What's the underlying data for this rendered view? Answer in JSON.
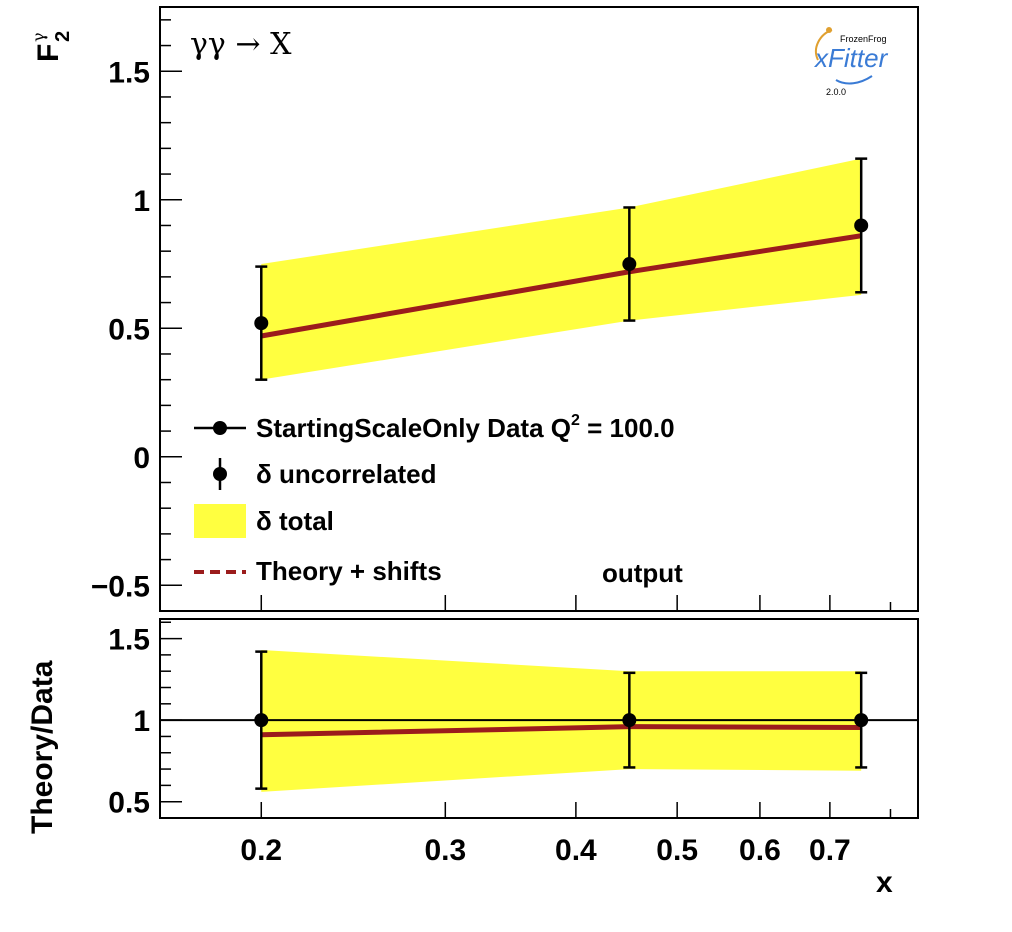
{
  "chart_data": [
    {
      "type": "scatter",
      "panel": "main",
      "process_label": "γγ → X",
      "ylabel": "F",
      "ylabel_sub": "2",
      "ylabel_sup": "γ",
      "xscale": "log",
      "xlim": [
        0.16,
        0.85
      ],
      "ylim": [
        -0.6,
        1.75
      ],
      "y_ticks": [
        1.5,
        1,
        0.5,
        0,
        -0.5
      ],
      "y_tick_labels": [
        "1.5",
        "1",
        "0.5",
        "0",
        "−0.5"
      ],
      "x": [
        0.2,
        0.45,
        0.75
      ],
      "data": [
        0.52,
        0.75,
        0.9
      ],
      "err_uncorrelated": [
        0.22,
        0.22,
        0.26
      ],
      "band_total_low": [
        0.3,
        0.53,
        0.63
      ],
      "band_total_high": [
        0.75,
        0.97,
        1.16
      ],
      "theory": [
        0.47,
        0.72,
        0.86
      ],
      "colors": {
        "band": "#ffff40",
        "theory": "#9b1c1c",
        "data": "#000000"
      },
      "legend": {
        "placement": "bottom-left",
        "entries": [
          {
            "symbol": "line-marker",
            "label": "StartingScaleOnly  Data Q",
            "sup": "2",
            "suffix": " = 100.0"
          },
          {
            "symbol": "errorbar",
            "label": "δ uncorrelated"
          },
          {
            "symbol": "box",
            "label": "δ total"
          },
          {
            "symbol": "dashed",
            "label": "Theory + shifts"
          }
        ]
      },
      "annotation": "output",
      "logo": {
        "top": "FrozenFrog",
        "name": "xFitter",
        "version": "2.0.0"
      }
    },
    {
      "type": "scatter",
      "panel": "ratio",
      "ylabel": "Theory/Data",
      "xlabel": "x",
      "xscale": "log",
      "xlim": [
        0.16,
        0.85
      ],
      "ylim": [
        0.4,
        1.62
      ],
      "y_ticks": [
        1.5,
        1,
        0.5
      ],
      "y_tick_labels": [
        "1.5",
        "1",
        "0.5"
      ],
      "x_ticks": [
        0.2,
        0.3,
        0.4,
        0.5,
        0.6,
        0.7
      ],
      "x_tick_labels": [
        "0.2",
        "0.3",
        "0.4",
        "0.5",
        "0.6",
        "0.7"
      ],
      "x": [
        0.2,
        0.45,
        0.75
      ],
      "data": [
        1,
        1,
        1
      ],
      "err_uncorrelated": [
        0.42,
        0.29,
        0.29
      ],
      "band_total_low": [
        0.56,
        0.7,
        0.69
      ],
      "band_total_high": [
        1.43,
        1.3,
        1.3
      ],
      "theory": [
        0.91,
        0.96,
        0.955
      ],
      "reference_line": 1
    }
  ]
}
